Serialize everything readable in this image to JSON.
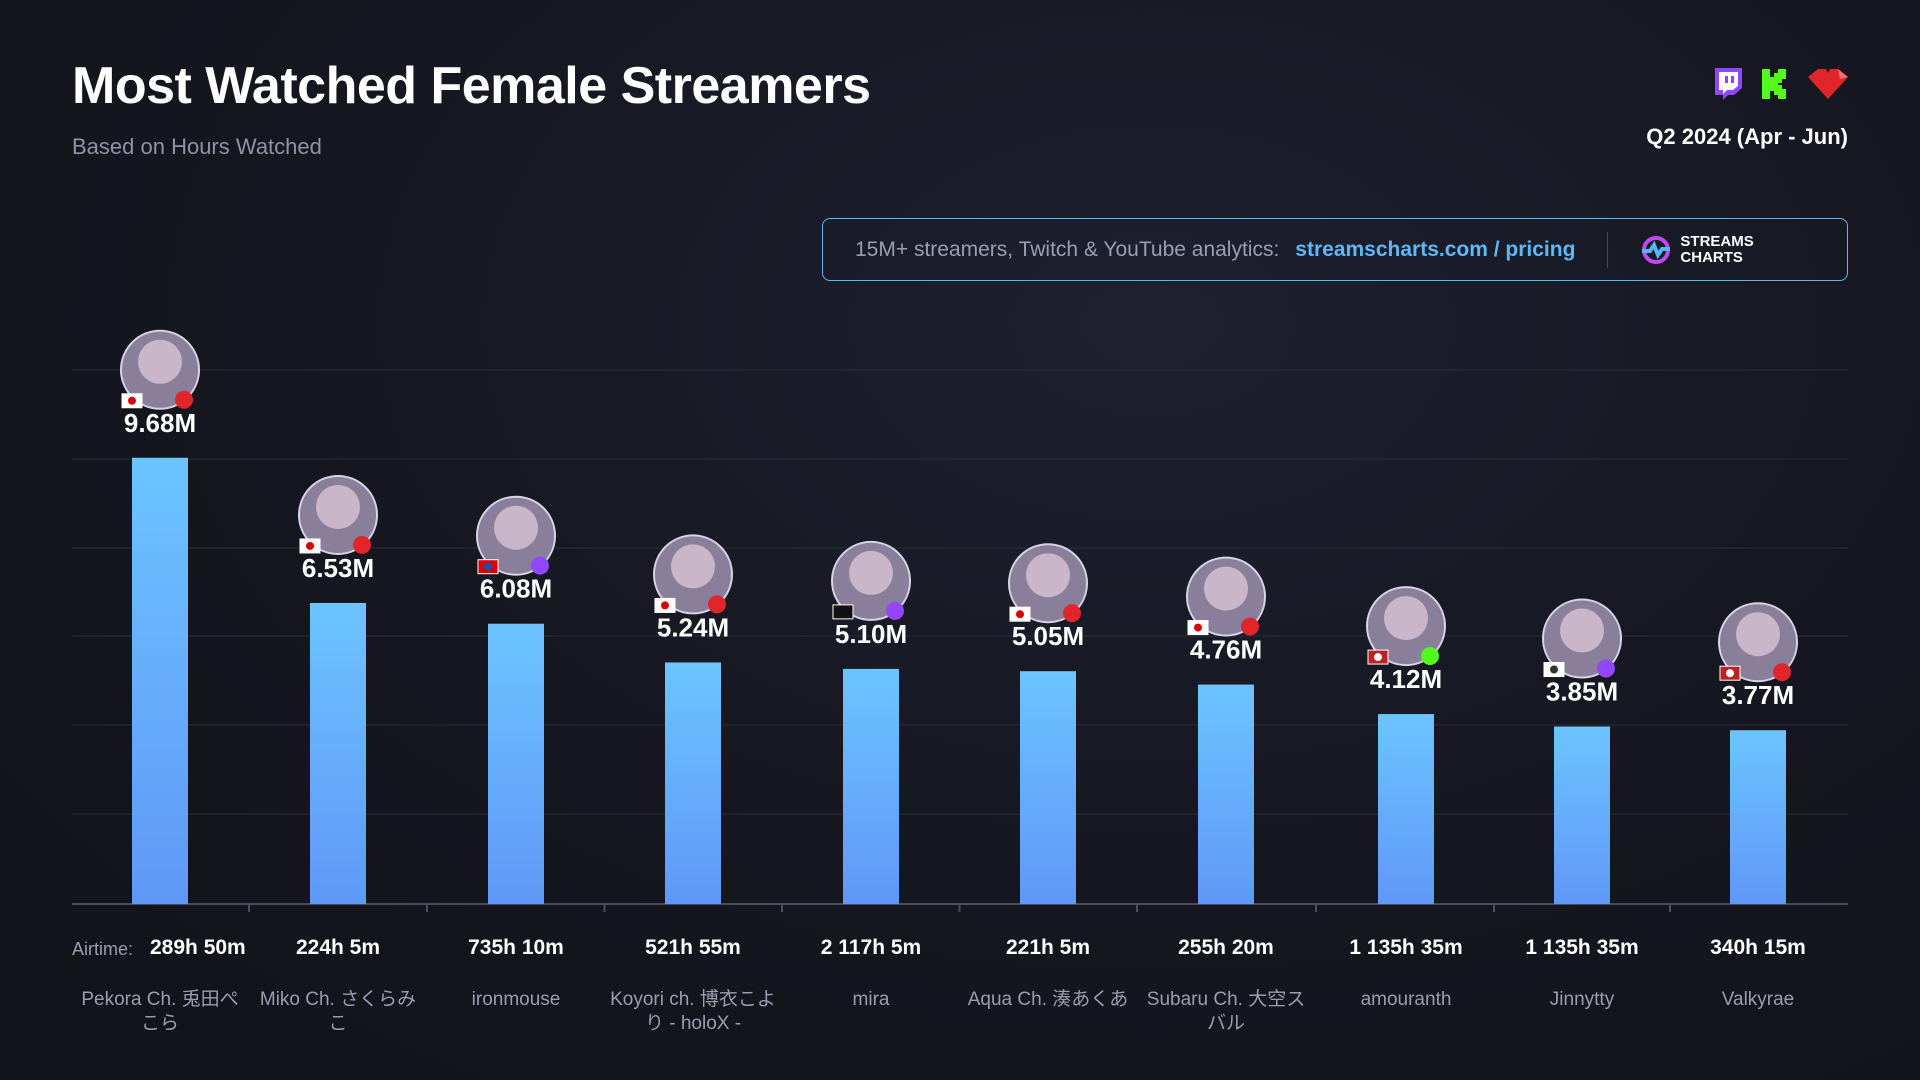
{
  "header": {
    "title": "Most Watched Female Streamers",
    "subtitle": "Based on Hours Watched",
    "period": "Q2 2024 (Apr - Jun)",
    "platforms": [
      "twitch-icon",
      "kick-icon",
      "youtube-icon"
    ]
  },
  "banner": {
    "text": "15M+ streamers, Twitch & YouTube analytics:",
    "link": "streamscharts.com / pricing",
    "logo": "STREAMS CHARTS"
  },
  "airtime_label": "Airtime:",
  "colors": {
    "bar_top": "#6cc4ff",
    "bar_bottom": "#5f98f7",
    "twitch": "#9146ff",
    "kick": "#53fc18",
    "youtube": "#e0262b"
  },
  "chart_data": {
    "type": "bar",
    "title": "Most Watched Female Streamers",
    "ylabel": "Hours Watched",
    "ylim": [
      0,
      10000000
    ],
    "grid": true,
    "categories": [
      "Pekora Ch. 兎田ぺこら",
      "Miko Ch. さくらみこ",
      "ironmouse",
      "Koyori ch. 博衣こより - holoX -",
      "mira",
      "Aqua Ch. 湊あくあ",
      "Subaru Ch. 大空スバル",
      "amouranth",
      "Jinnytty",
      "Valkyrae"
    ],
    "values": [
      9680000,
      6530000,
      6080000,
      5240000,
      5100000,
      5050000,
      4760000,
      4120000,
      3850000,
      3770000
    ],
    "value_labels": [
      "9.68M",
      "6.53M",
      "6.08M",
      "5.24M",
      "5.10M",
      "5.05M",
      "4.76M",
      "4.12M",
      "3.85M",
      "3.77M"
    ],
    "airtime": [
      "289h 50m",
      "224h 5m",
      "735h 10m",
      "521h 55m",
      "2 117h 5m",
      "221h 5m",
      "255h 20m",
      "1 135h 35m",
      "1 135h 35m",
      "340h 15m"
    ],
    "platform": [
      "youtube",
      "youtube",
      "twitch",
      "youtube",
      "twitch",
      "youtube",
      "youtube",
      "kick",
      "twitch",
      "youtube"
    ],
    "country": [
      "jp",
      "jp",
      "pr",
      "jp",
      "none",
      "jp",
      "jp",
      "us",
      "kr",
      "us"
    ]
  }
}
